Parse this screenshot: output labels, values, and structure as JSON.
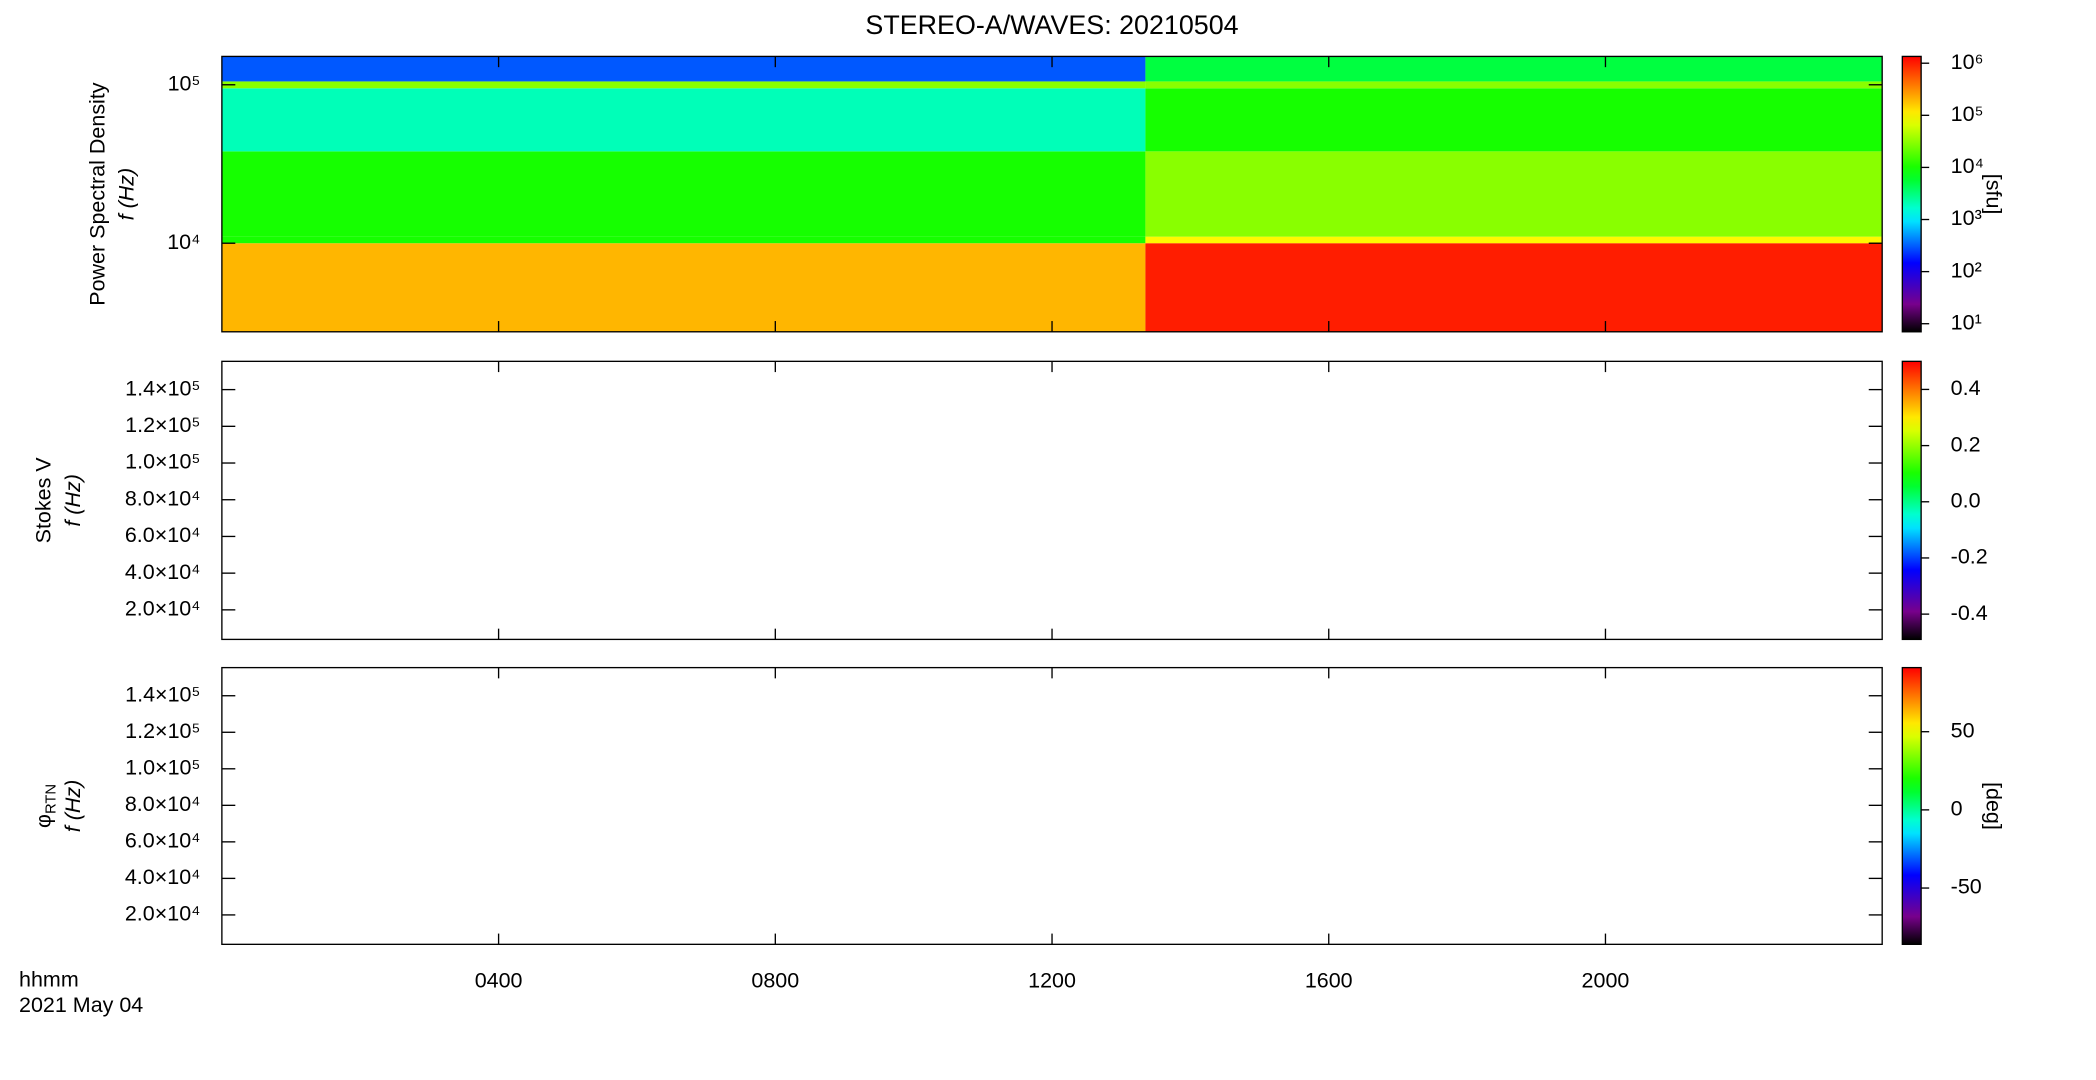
{
  "title": "STEREO-A/WAVES: 20210504",
  "time_label": "hhmm",
  "date_label": "2021 May 04",
  "chart_data": [
    {
      "type": "heatmap",
      "ylabel": "Power Spectral Density",
      "ylabel2": "f (Hz)",
      "ylog": true,
      "xlim": [
        0,
        24
      ],
      "xticks": [
        4,
        8,
        12,
        16,
        20
      ],
      "ylim": [
        2760,
        151000
      ],
      "yticks": [
        {
          "value": 10000,
          "label": "10⁴"
        },
        {
          "value": 100000,
          "label": "10⁵"
        }
      ],
      "x_edges": [
        0,
        13.35,
        24
      ],
      "y_edges": [
        2760,
        10000,
        11000,
        38000,
        95000,
        105000,
        151000
      ],
      "z": [
        [
          200000,
          10000,
          10000,
          2000,
          30000,
          300
        ],
        [
          1000000,
          100000,
          30000,
          10000,
          30000,
          5000
        ]
      ],
      "colormap": "rainbow",
      "zlog": true,
      "zlim": [
        7,
        1350000
      ],
      "zticks": [
        {
          "value": 10,
          "label": "10¹"
        },
        {
          "value": 100,
          "label": "10²"
        },
        {
          "value": 1000,
          "label": "10³"
        },
        {
          "value": 10000,
          "label": "10⁴"
        },
        {
          "value": 100000,
          "label": "10⁵"
        },
        {
          "value": 1000000,
          "label": "10⁶"
        }
      ],
      "zlabel": "[sfu]"
    },
    {
      "type": "heatmap",
      "ylabel": "Stokes V",
      "ylabel2": "f (Hz)",
      "ylog": false,
      "xlim": [
        0,
        24
      ],
      "xticks": [
        4,
        8,
        12,
        16,
        20
      ],
      "ylim": [
        3900,
        155400
      ],
      "yticks": [
        {
          "value": 20000,
          "label": "2.0×10⁴"
        },
        {
          "value": 40000,
          "label": "4.0×10⁴"
        },
        {
          "value": 60000,
          "label": "6.0×10⁴"
        },
        {
          "value": 80000,
          "label": "8.0×10⁴"
        },
        {
          "value": 100000,
          "label": "1.0×10⁵"
        },
        {
          "value": 120000,
          "label": "1.2×10⁵"
        },
        {
          "value": 140000,
          "label": "1.4×10⁵"
        }
      ],
      "colormap": "rainbow",
      "zlog": false,
      "zlim": [
        -0.49,
        0.5
      ],
      "zticks": [
        -0.4,
        -0.2,
        {
          "value": 0,
          "label": "0.0"
        },
        0.2,
        0.4
      ]
    },
    {
      "type": "heatmap",
      "ylabel": "φ",
      "ylabel_sub": "RTN",
      "ylabel2": "f (Hz)",
      "ylog": false,
      "xlim": [
        0,
        24
      ],
      "xticks": [
        {
          "value": 4,
          "label": "0400"
        },
        {
          "value": 8,
          "label": "0800"
        },
        {
          "value": 12,
          "label": "1200"
        },
        {
          "value": 16,
          "label": "1600"
        },
        {
          "value": 20,
          "label": "2000"
        }
      ],
      "ylim": [
        3900,
        155400
      ],
      "yticks": [
        {
          "value": 20000,
          "label": "2.0×10⁴"
        },
        {
          "value": 40000,
          "label": "4.0×10⁴"
        },
        {
          "value": 60000,
          "label": "6.0×10⁴"
        },
        {
          "value": 80000,
          "label": "8.0×10⁴"
        },
        {
          "value": 100000,
          "label": "1.0×10⁵"
        },
        {
          "value": 120000,
          "label": "1.2×10⁵"
        },
        {
          "value": 140000,
          "label": "1.4×10⁵"
        }
      ],
      "colormap": "rainbow",
      "zlog": false,
      "zlim": [
        -86,
        91
      ],
      "zticks": [
        -50,
        0,
        50
      ],
      "zlabel": "[deg]"
    }
  ]
}
